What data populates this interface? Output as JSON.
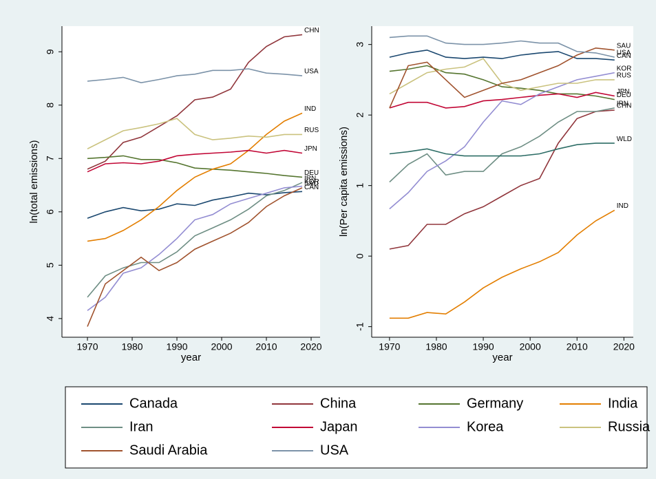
{
  "chart_data": [
    {
      "type": "line",
      "y_label": "ln(total emissions)",
      "x_label": "year",
      "x": [
        1970,
        1974,
        1978,
        1982,
        1986,
        1990,
        1994,
        1998,
        2002,
        2006,
        2010,
        2014,
        2018
      ],
      "xlim": [
        1964.3,
        2022
      ],
      "xticks": [
        1970,
        1980,
        1990,
        2000,
        2010,
        2020
      ],
      "ylim": [
        3.65,
        9.48
      ],
      "yticks": [
        4,
        5,
        6,
        7,
        8,
        9
      ],
      "series": [
        {
          "name": "Canada",
          "label": "CAN",
          "color": "#1a476f",
          "values": [
            5.88,
            6.0,
            6.08,
            6.02,
            6.05,
            6.15,
            6.12,
            6.22,
            6.28,
            6.35,
            6.32,
            6.36,
            6.38
          ]
        },
        {
          "name": "China",
          "label": "CHN",
          "color": "#90353b",
          "values": [
            6.8,
            6.95,
            7.3,
            7.4,
            7.6,
            7.8,
            8.1,
            8.15,
            8.3,
            8.8,
            9.1,
            9.28,
            9.32
          ]
        },
        {
          "name": "Germany",
          "label": "DEU",
          "color": "#55752f",
          "values": [
            7.0,
            7.02,
            7.05,
            6.98,
            6.98,
            6.92,
            6.82,
            6.8,
            6.78,
            6.75,
            6.72,
            6.68,
            6.65
          ]
        },
        {
          "name": "India",
          "label": "IND",
          "color": "#e37e00",
          "values": [
            5.45,
            5.5,
            5.65,
            5.85,
            6.1,
            6.4,
            6.65,
            6.8,
            6.9,
            7.15,
            7.45,
            7.7,
            7.85
          ]
        },
        {
          "name": "Iran",
          "label": "IRN",
          "color": "#6e8e84",
          "values": [
            4.4,
            4.8,
            4.95,
            5.05,
            5.05,
            5.25,
            5.55,
            5.7,
            5.85,
            6.05,
            6.3,
            6.4,
            6.55
          ]
        },
        {
          "name": "Japan",
          "label": "JPN",
          "color": "#c10534",
          "values": [
            6.75,
            6.9,
            6.92,
            6.9,
            6.95,
            7.05,
            7.08,
            7.1,
            7.12,
            7.15,
            7.1,
            7.15,
            7.1
          ]
        },
        {
          "name": "Korea",
          "label": "KOR",
          "color": "#938dd2",
          "values": [
            4.15,
            4.4,
            4.85,
            4.95,
            5.2,
            5.5,
            5.85,
            5.95,
            6.15,
            6.25,
            6.35,
            6.45,
            6.48
          ]
        },
        {
          "name": "Russia",
          "label": "RUS",
          "color": "#cac27e",
          "values": [
            7.18,
            7.35,
            7.52,
            7.58,
            7.65,
            7.75,
            7.45,
            7.35,
            7.38,
            7.42,
            7.4,
            7.45,
            7.45
          ]
        },
        {
          "name": "Saudi Arabia",
          "label": "SAU",
          "color": "#a0522d",
          "values": [
            3.85,
            4.65,
            4.9,
            5.15,
            4.9,
            5.05,
            5.3,
            5.45,
            5.6,
            5.8,
            6.1,
            6.3,
            6.45
          ]
        },
        {
          "name": "USA",
          "label": "USA",
          "color": "#7b92a8",
          "values": [
            8.45,
            8.48,
            8.52,
            8.42,
            8.48,
            8.55,
            8.58,
            8.65,
            8.65,
            8.68,
            8.6,
            8.58,
            8.55
          ]
        }
      ]
    },
    {
      "type": "line",
      "y_label": "ln(Per capita emissions)",
      "x_label": "year",
      "x": [
        1970,
        1974,
        1978,
        1982,
        1986,
        1990,
        1994,
        1998,
        2002,
        2006,
        2010,
        2014,
        2018
      ],
      "xlim": [
        1966.2,
        2022
      ],
      "xticks": [
        1970,
        1980,
        1990,
        2000,
        2010,
        2020
      ],
      "ylim": [
        -1.15,
        3.26
      ],
      "yticks": [
        -1,
        0,
        1,
        2,
        3
      ],
      "series": [
        {
          "label": "CAN",
          "color": "#1a476f",
          "values": [
            2.82,
            2.88,
            2.92,
            2.82,
            2.8,
            2.82,
            2.8,
            2.85,
            2.88,
            2.9,
            2.8,
            2.8,
            2.78
          ]
        },
        {
          "label": "CHN",
          "color": "#90353b",
          "values": [
            0.1,
            0.15,
            0.45,
            0.45,
            0.6,
            0.7,
            0.85,
            1.0,
            1.1,
            1.6,
            1.95,
            2.05,
            2.07
          ]
        },
        {
          "label": "DEU",
          "color": "#55752f",
          "values": [
            2.62,
            2.65,
            2.7,
            2.6,
            2.58,
            2.5,
            2.4,
            2.38,
            2.35,
            2.3,
            2.3,
            2.27,
            2.22
          ]
        },
        {
          "label": "IND",
          "color": "#e37e00",
          "values": [
            -0.88,
            -0.88,
            -0.8,
            -0.82,
            -0.65,
            -0.45,
            -0.3,
            -0.18,
            -0.08,
            0.05,
            0.3,
            0.5,
            0.65
          ]
        },
        {
          "label": "IRN",
          "color": "#6e8e84",
          "values": [
            1.05,
            1.3,
            1.45,
            1.15,
            1.2,
            1.2,
            1.45,
            1.55,
            1.7,
            1.9,
            2.05,
            2.05,
            2.1
          ]
        },
        {
          "label": "JPN",
          "color": "#c10534",
          "values": [
            2.1,
            2.18,
            2.18,
            2.1,
            2.12,
            2.2,
            2.22,
            2.25,
            2.28,
            2.3,
            2.25,
            2.32,
            2.27
          ]
        },
        {
          "label": "KOR",
          "color": "#938dd2",
          "values": [
            0.67,
            0.9,
            1.2,
            1.35,
            1.55,
            1.9,
            2.2,
            2.15,
            2.3,
            2.4,
            2.5,
            2.55,
            2.6
          ]
        },
        {
          "label": "RUS",
          "color": "#cac27e",
          "values": [
            2.3,
            2.45,
            2.6,
            2.65,
            2.68,
            2.8,
            2.45,
            2.35,
            2.4,
            2.45,
            2.45,
            2.5,
            2.5
          ]
        },
        {
          "label": "SAU",
          "color": "#a0522d",
          "values": [
            2.1,
            2.7,
            2.75,
            2.5,
            2.25,
            2.35,
            2.45,
            2.5,
            2.6,
            2.7,
            2.85,
            2.95,
            2.92
          ]
        },
        {
          "label": "USA",
          "color": "#7b92a8",
          "values": [
            3.1,
            3.12,
            3.12,
            3.02,
            3.0,
            3.0,
            3.02,
            3.05,
            3.02,
            3.02,
            2.9,
            2.88,
            2.82
          ]
        },
        {
          "label": "WLD",
          "color": "#2d6d66",
          "values": [
            1.45,
            1.48,
            1.52,
            1.45,
            1.42,
            1.42,
            1.42,
            1.42,
            1.45,
            1.52,
            1.58,
            1.6,
            1.6
          ]
        }
      ]
    }
  ]
}
